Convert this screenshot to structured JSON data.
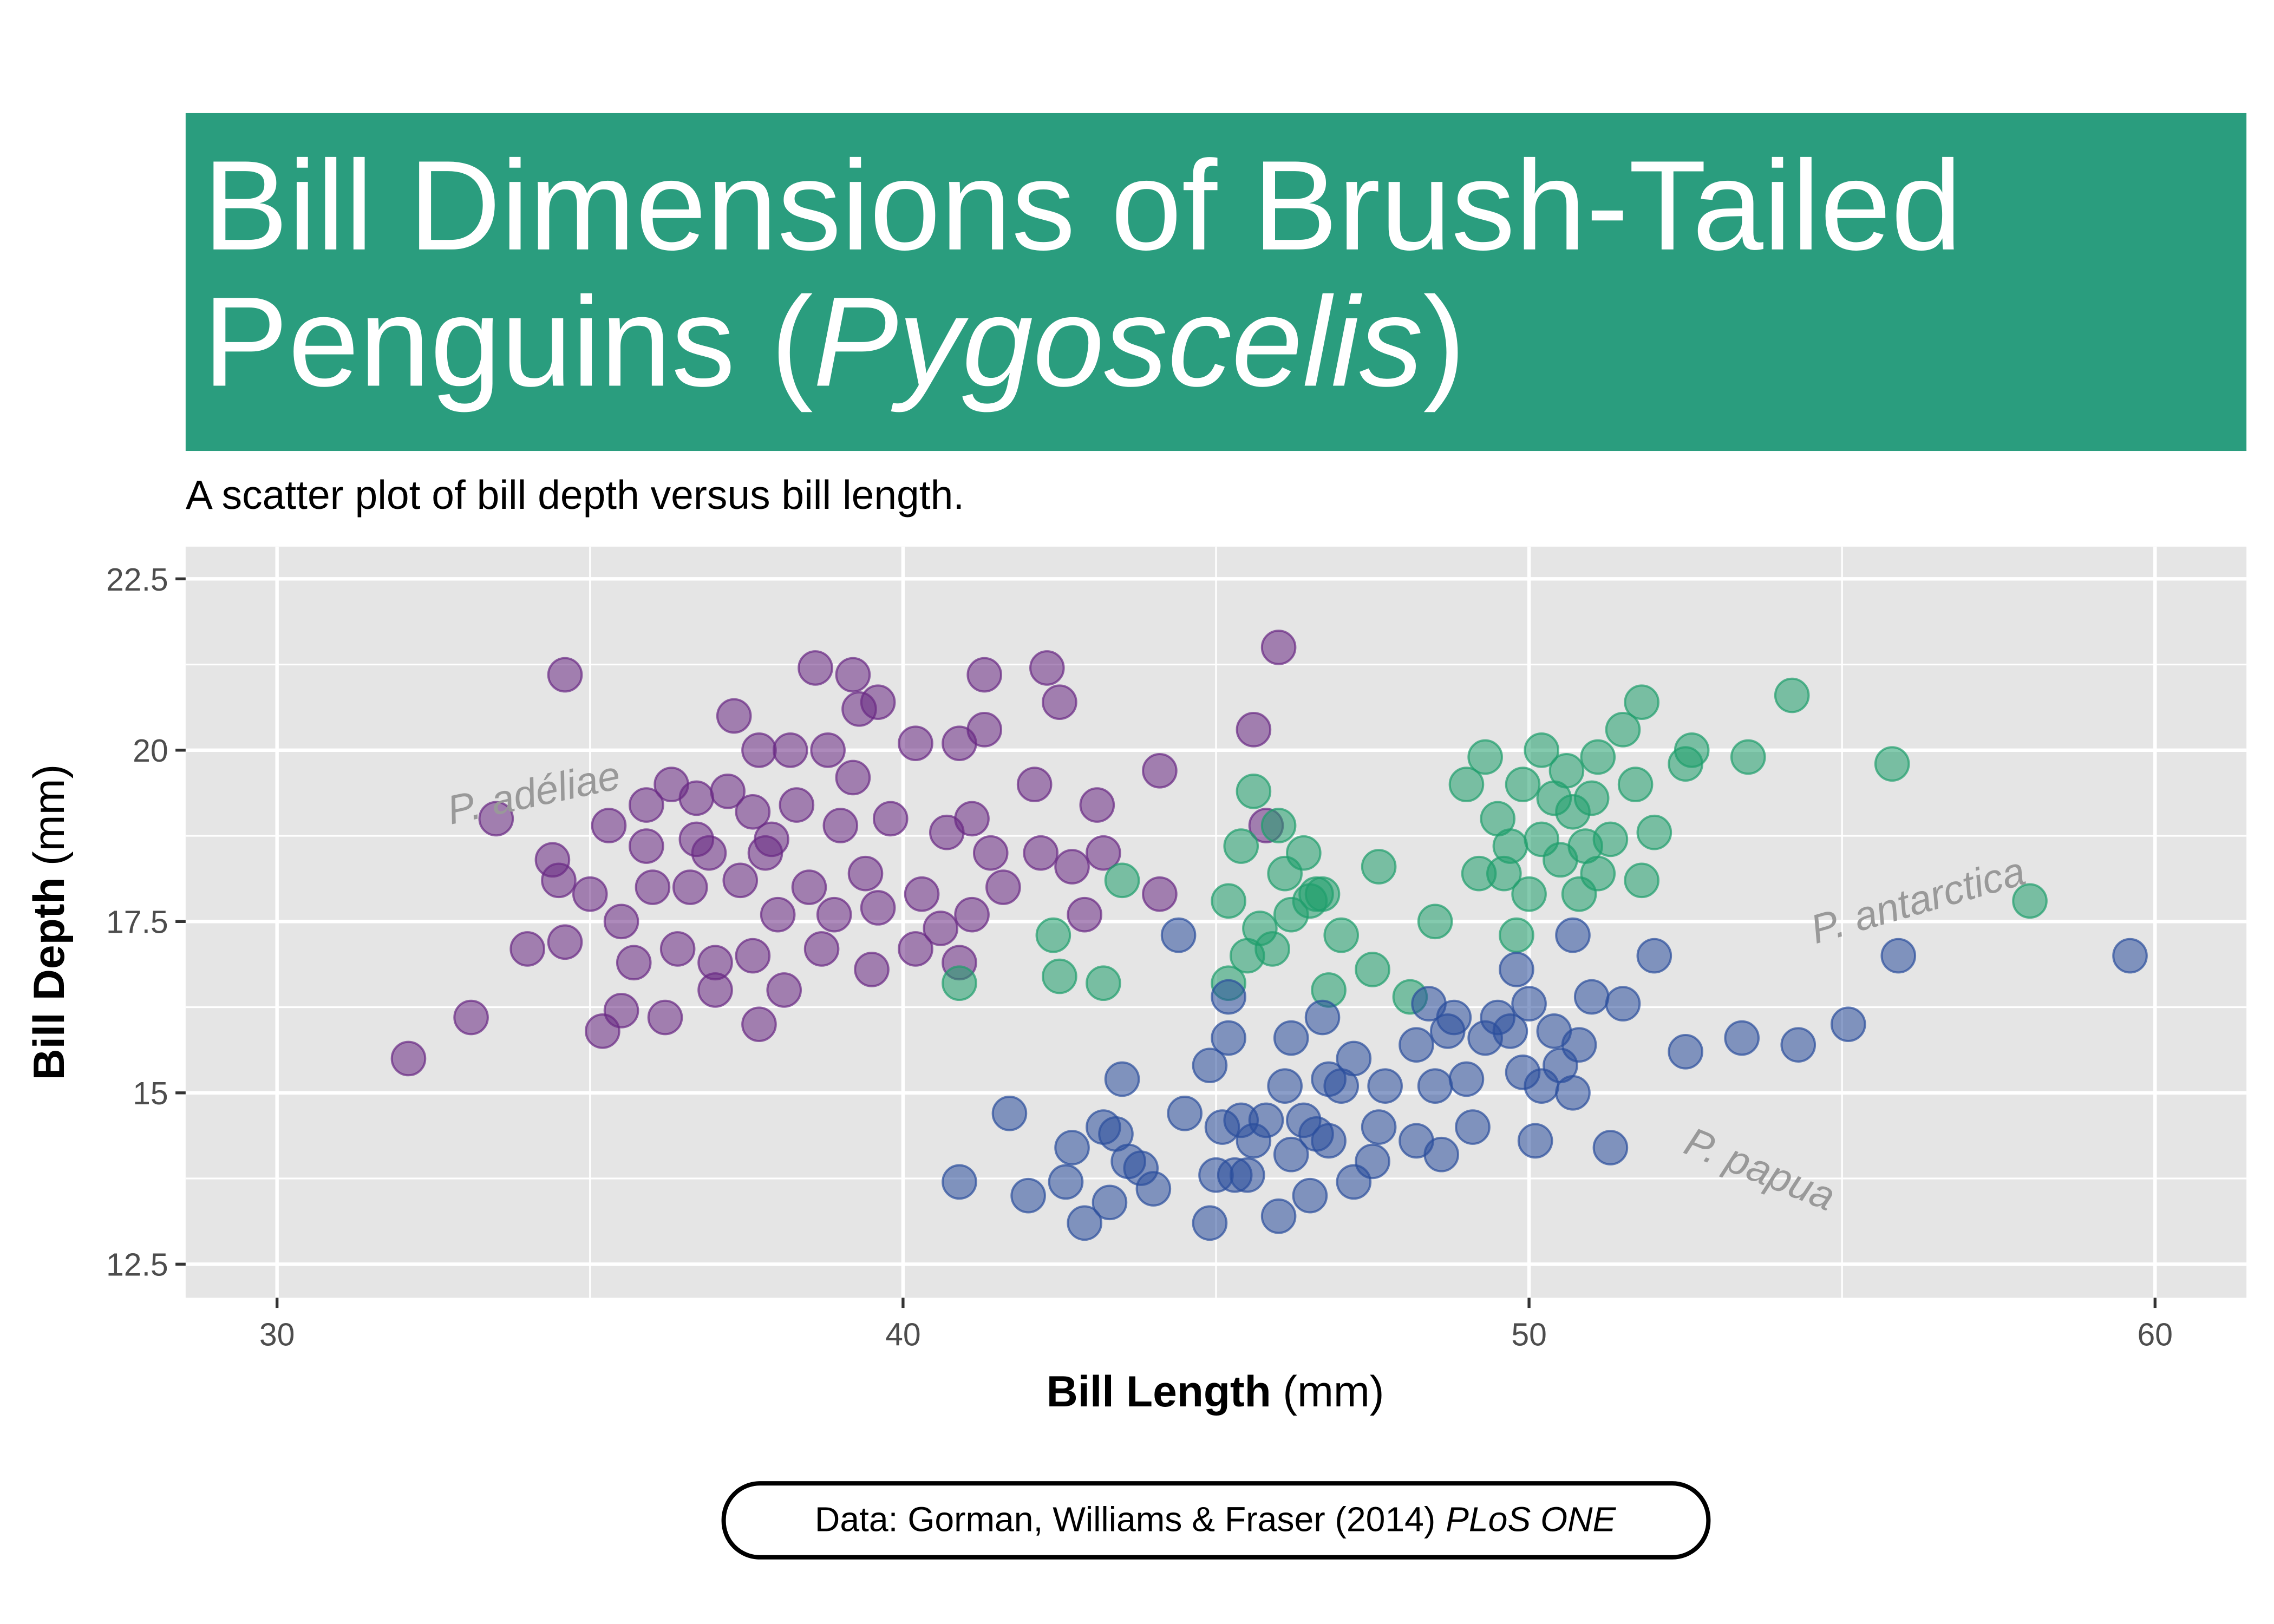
{
  "chart_data": {
    "type": "scatter",
    "title": {
      "line1": "Bill Dimensions of Brush-Tailed",
      "line2_start": "Penguins (",
      "line2_italic": "Pygoscelis",
      "line2_end": ")"
    },
    "title_background": "#2a9d7e",
    "subtitle": "A scatter plot of bill depth versus bill length.",
    "x_label": {
      "bold": "Bill Length",
      "rest": "(mm)"
    },
    "y_label": {
      "bold": "Bill Depth",
      "rest": "(mm)"
    },
    "caption": {
      "plain": "Data: Gorman, Williams & Fraser (2014)",
      "italic": "PLoS ONE"
    },
    "xlim": [
      28.54,
      61.46
    ],
    "ylim": [
      12.01,
      22.97
    ],
    "xticks": [
      30,
      40,
      50,
      60
    ],
    "yticks": [
      12.5,
      15.0,
      17.5,
      20.0,
      22.5
    ],
    "grid": true,
    "series": [
      {
        "name": "P. adéliae",
        "color": "#6a2a84",
        "x": [
          32.1,
          33.1,
          33.5,
          34.6,
          34.4,
          34.5,
          34.0,
          34.6,
          35.0,
          35.2,
          35.3,
          35.5,
          35.5,
          35.7,
          35.9,
          36.0,
          35.9,
          36.2,
          36.3,
          36.4,
          36.6,
          36.7,
          36.7,
          36.9,
          37.0,
          37.0,
          37.2,
          37.3,
          37.4,
          37.6,
          37.6,
          37.7,
          37.7,
          37.8,
          37.9,
          38.0,
          38.1,
          38.2,
          38.3,
          38.5,
          38.6,
          38.7,
          38.8,
          38.9,
          39.0,
          39.2,
          39.2,
          39.3,
          39.4,
          39.5,
          39.6,
          39.6,
          39.8,
          40.2,
          40.2,
          40.3,
          40.6,
          40.7,
          40.9,
          40.9,
          41.1,
          41.1,
          41.3,
          41.3,
          41.4,
          41.6,
          42.1,
          42.2,
          42.3,
          42.5,
          42.7,
          42.9,
          43.1,
          43.2,
          44.1,
          44.1,
          46.0,
          45.6,
          45.8
        ],
        "y": [
          15.5,
          16.1,
          19.0,
          21.1,
          18.4,
          18.1,
          17.1,
          17.2,
          17.9,
          15.9,
          18.9,
          16.2,
          17.5,
          16.9,
          19.2,
          18.0,
          18.6,
          16.1,
          19.5,
          17.1,
          18.0,
          19.3,
          18.7,
          18.5,
          16.9,
          16.5,
          19.4,
          20.5,
          18.1,
          19.1,
          17.0,
          16.0,
          20.0,
          18.5,
          18.7,
          17.6,
          16.5,
          20.0,
          19.2,
          18.0,
          21.2,
          17.1,
          20.0,
          17.6,
          18.9,
          21.1,
          19.6,
          20.6,
          18.2,
          16.8,
          20.7,
          17.7,
          19.0,
          17.1,
          20.1,
          17.9,
          17.4,
          18.8,
          16.9,
          20.1,
          17.6,
          19.0,
          21.1,
          20.3,
          18.5,
          18.0,
          19.5,
          18.5,
          21.2,
          20.7,
          18.3,
          17.6,
          19.2,
          18.5,
          19.7,
          17.9,
          21.5,
          20.3,
          18.9
        ]
      },
      {
        "name": "P. antarctica",
        "color": "#1f9e6c",
        "x": [
          40.9,
          42.4,
          42.5,
          43.2,
          43.5,
          45.2,
          45.2,
          45.4,
          45.6,
          45.5,
          45.7,
          45.9,
          46.0,
          46.1,
          46.2,
          46.4,
          46.5,
          46.6,
          46.7,
          46.8,
          47.0,
          47.5,
          47.6,
          48.1,
          48.5,
          49.0,
          49.2,
          49.3,
          49.5,
          49.6,
          49.7,
          49.8,
          49.9,
          50.0,
          50.2,
          50.2,
          50.4,
          50.5,
          50.6,
          50.7,
          50.8,
          50.9,
          51.0,
          51.1,
          51.1,
          51.3,
          51.5,
          51.7,
          51.8,
          51.8,
          52.0,
          52.5,
          52.6,
          53.5,
          54.2,
          55.8,
          58.0
        ],
        "y": [
          16.6,
          17.3,
          16.7,
          16.6,
          18.1,
          17.8,
          16.6,
          18.6,
          19.4,
          17.0,
          17.4,
          17.1,
          18.9,
          18.2,
          17.6,
          18.5,
          17.8,
          17.9,
          17.9,
          16.5,
          17.3,
          16.8,
          18.3,
          16.4,
          17.5,
          19.5,
          18.2,
          19.9,
          19.0,
          18.2,
          18.6,
          17.3,
          19.5,
          17.9,
          18.7,
          20.0,
          19.3,
          18.4,
          19.7,
          19.1,
          17.9,
          18.6,
          19.3,
          18.2,
          19.9,
          18.7,
          20.3,
          19.5,
          20.7,
          18.1,
          18.8,
          19.8,
          20.0,
          19.9,
          20.8,
          19.8,
          17.8
        ]
      },
      {
        "name": "P. papua",
        "color": "#2b4f9c",
        "x": [
          40.9,
          41.7,
          42.0,
          42.6,
          42.7,
          42.9,
          43.2,
          43.3,
          43.4,
          43.5,
          43.6,
          43.8,
          44.0,
          44.4,
          44.5,
          44.9,
          44.9,
          45.0,
          45.1,
          45.2,
          45.2,
          45.3,
          45.4,
          45.5,
          45.6,
          45.8,
          46.0,
          46.1,
          46.2,
          46.2,
          46.4,
          46.5,
          46.6,
          46.7,
          46.8,
          46.8,
          47.0,
          47.2,
          47.2,
          47.5,
          47.6,
          47.7,
          48.2,
          48.2,
          48.4,
          48.5,
          48.6,
          48.7,
          48.8,
          49.0,
          49.1,
          49.3,
          49.5,
          49.7,
          49.8,
          49.9,
          50.0,
          50.1,
          50.2,
          50.4,
          50.5,
          50.7,
          50.7,
          50.8,
          51.0,
          51.3,
          51.5,
          52.0,
          52.5,
          53.4,
          54.3,
          55.1,
          55.9,
          59.6
        ],
        "y": [
          13.7,
          14.7,
          13.5,
          13.7,
          14.2,
          13.1,
          14.5,
          13.4,
          14.4,
          15.2,
          14.0,
          13.9,
          13.6,
          17.3,
          14.7,
          13.1,
          15.4,
          13.8,
          14.5,
          16.4,
          15.8,
          13.8,
          14.6,
          13.8,
          14.3,
          14.6,
          13.2,
          15.1,
          14.1,
          15.8,
          14.6,
          13.5,
          14.4,
          16.1,
          15.2,
          14.3,
          15.1,
          13.7,
          15.5,
          14.0,
          14.5,
          15.1,
          15.7,
          14.3,
          16.3,
          15.1,
          14.1,
          15.9,
          16.1,
          15.2,
          14.5,
          15.8,
          16.1,
          15.9,
          16.8,
          15.3,
          16.3,
          14.3,
          15.1,
          15.9,
          15.4,
          15.0,
          17.3,
          15.7,
          16.4,
          14.2,
          16.3,
          17.0,
          15.6,
          15.8,
          15.7,
          16.0,
          17.0,
          17.0
        ]
      }
    ]
  }
}
